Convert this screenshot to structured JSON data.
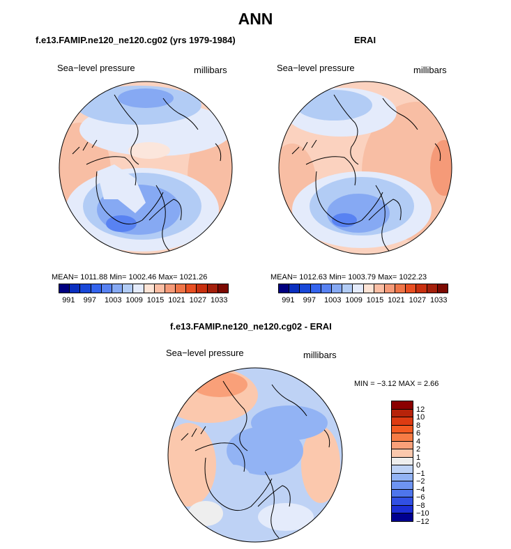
{
  "title": "ANN",
  "panels": [
    {
      "title": "f.e13.FAMIP.ne120_ne120.cg02 (yrs 1979-1984)",
      "variable": "Sea−level pressure",
      "units": "millibars",
      "stats": "MEAN= 1011.88   Min= 1002.46   Max= 1021.26"
    },
    {
      "title": "ERAI",
      "variable": "Sea−level pressure",
      "units": "millibars",
      "stats": "MEAN= 1012.63   Min= 1003.79   Max= 1022.23"
    },
    {
      "title": "f.e13.FAMIP.ne120_ne120.cg02 - ERAI",
      "variable": "Sea−level pressure",
      "units": "millibars",
      "stats": "MIN =   −3.12  MAX =    2.66"
    }
  ],
  "colorbar_abs": {
    "colors": [
      "#00007f",
      "#0a2fbf",
      "#1948d8",
      "#3464ee",
      "#5882f2",
      "#86a9f3",
      "#b2ccf5",
      "#e4ebfb",
      "#fde4d6",
      "#fbbea4",
      "#f59a78",
      "#ef7548",
      "#e84f22",
      "#c8300f",
      "#a4200b",
      "#7c0a02"
    ],
    "tick_labels": [
      "991",
      "997",
      "1003",
      "1009",
      "1015",
      "1021",
      "1027",
      "1033"
    ]
  },
  "colorbar_diff": {
    "colors": [
      "#8b0000",
      "#b7230a",
      "#dd3b12",
      "#f35a22",
      "#f77c45",
      "#f9a079",
      "#fbc8ad",
      "#eeeeee",
      "#bed2f5",
      "#92b3f4",
      "#6e94f2",
      "#4e75ec",
      "#3150e4",
      "#1c2fd6",
      "#000090"
    ],
    "tick_labels": [
      "12",
      "10",
      "8",
      "6",
      "4",
      "2",
      "1",
      "0",
      "−1",
      "−2",
      "−4",
      "−6",
      "−8",
      "−10",
      "−12"
    ]
  }
}
